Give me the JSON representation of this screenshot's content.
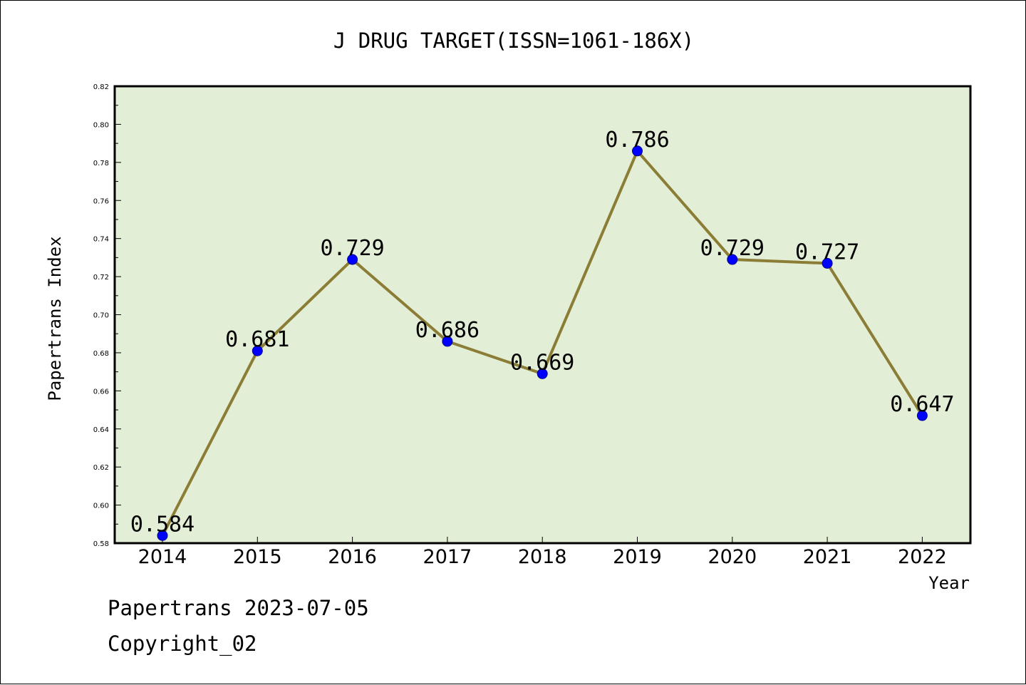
{
  "chart_data": {
    "type": "line",
    "title": "J DRUG TARGET(ISSN=1061-186X)",
    "xlabel": "Year",
    "ylabel": "Papertrans Index",
    "categories": [
      "2014",
      "2015",
      "2016",
      "2017",
      "2018",
      "2019",
      "2020",
      "2021",
      "2022"
    ],
    "series": [
      {
        "values": [
          0.584,
          0.681,
          0.729,
          0.686,
          0.669,
          0.786,
          0.729,
          0.727,
          0.647
        ],
        "data_labels": [
          "0.584",
          "0.681",
          "0.729",
          "0.686",
          "0.669",
          "0.786",
          "0.729",
          "0.727",
          "0.647"
        ]
      }
    ],
    "ylim": [
      0.58,
      0.82
    ],
    "yticks": [
      "0.58",
      "0.60",
      "0.62",
      "0.64",
      "0.66",
      "0.68",
      "0.70",
      "0.72",
      "0.74",
      "0.76",
      "0.78",
      "0.80",
      "0.82"
    ],
    "grid": false,
    "legend": "none",
    "colors": {
      "plot_background": "#e2efd6",
      "line": "#8b7d35",
      "marker": "#0000ff"
    }
  },
  "footer": {
    "line1": "Papertrans 2023-07-05",
    "line2": "Copyright_02"
  }
}
